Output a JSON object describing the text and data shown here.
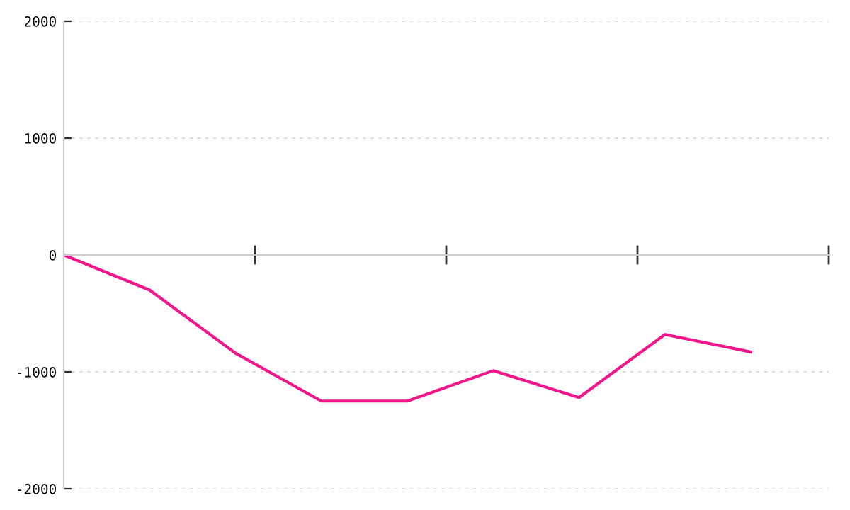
{
  "chart_data": {
    "type": "line",
    "categories": [
      null,
      null,
      null,
      null,
      null,
      null,
      null,
      null,
      null
    ],
    "series": [
      {
        "color": "#f0168c",
        "values": [
          0,
          -300,
          -840,
          -1250,
          -1250,
          -990,
          -1220,
          -680,
          -830
        ]
      }
    ],
    "ylim": [
      -2000,
      2000
    ],
    "yticks": [
      -2000,
      -1000,
      0,
      1000,
      2000
    ],
    "grid": "y",
    "tick_labels": "y",
    "marker": "none",
    "line_style": "solid"
  }
}
